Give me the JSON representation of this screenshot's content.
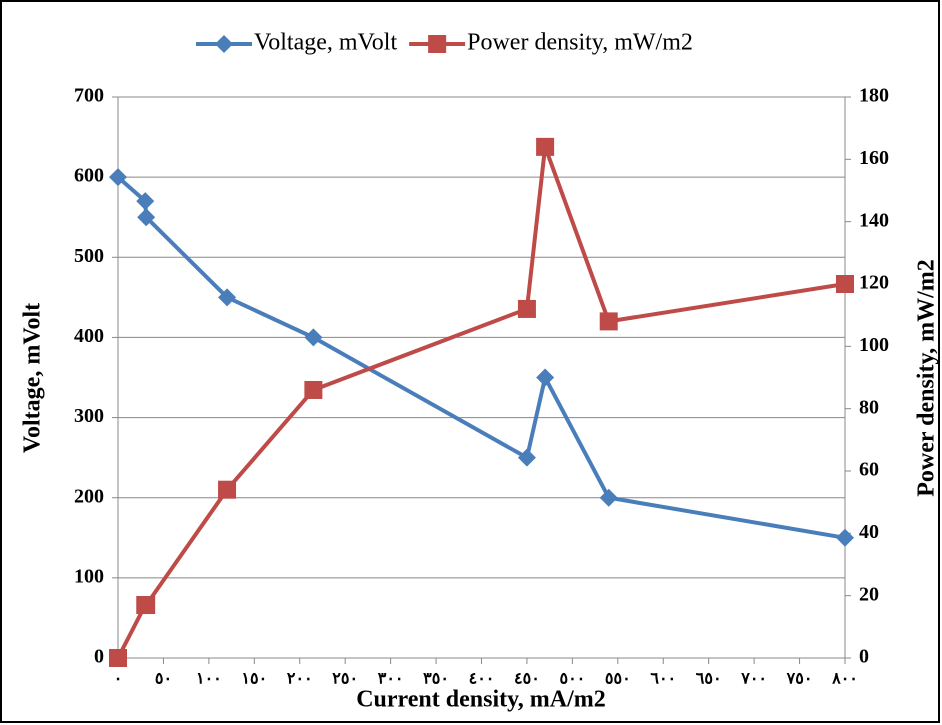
{
  "chart_data": {
    "type": "line",
    "x_label": "Current density, mA/m2",
    "y_label": "Voltage, mVolt",
    "y2_label": "Power density, mW/m2",
    "x": [
      0,
      30,
      31,
      120,
      215,
      450,
      470,
      540,
      800
    ],
    "series": [
      {
        "name": "Voltage, mVolt",
        "color": "#4a7ebb",
        "marker": "diamond",
        "values": [
          600,
          570,
          550,
          450,
          400,
          250,
          350,
          200,
          150
        ]
      },
      {
        "name": "Power density, mW/m2",
        "color": "#be4b48",
        "marker": "square",
        "axis": "y2",
        "values": [
          0,
          17,
          17,
          54,
          86,
          112,
          164,
          108,
          120
        ]
      }
    ],
    "xlim": [
      0,
      800
    ],
    "xticks": [
      {
        "value": 0,
        "label": "٠"
      },
      {
        "value": 50,
        "label": "٥٠"
      },
      {
        "value": 100,
        "label": "١٠٠"
      },
      {
        "value": 150,
        "label": "١٥٠"
      },
      {
        "value": 200,
        "label": "٢٠٠"
      },
      {
        "value": 250,
        "label": "٢٥٠"
      },
      {
        "value": 300,
        "label": "٣٠٠"
      },
      {
        "value": 350,
        "label": "٣٥٠"
      },
      {
        "value": 400,
        "label": "٤٠٠"
      },
      {
        "value": 450,
        "label": "٤٥٠"
      },
      {
        "value": 500,
        "label": "٥٠٠"
      },
      {
        "value": 550,
        "label": "٥٥٠"
      },
      {
        "value": 600,
        "label": "٦٠٠"
      },
      {
        "value": 650,
        "label": "٦٥٠"
      },
      {
        "value": 700,
        "label": "٧٠٠"
      },
      {
        "value": 750,
        "label": "٧٥٠"
      },
      {
        "value": 800,
        "label": "٨٠٠"
      }
    ],
    "ylim": [
      0,
      700
    ],
    "yticks": [
      0,
      100,
      200,
      300,
      400,
      500,
      600,
      700
    ],
    "y2lim": [
      0,
      180
    ],
    "y2ticks": [
      0,
      20,
      40,
      60,
      80,
      100,
      120,
      140,
      160,
      180
    ],
    "grid": true,
    "legend": "top"
  }
}
